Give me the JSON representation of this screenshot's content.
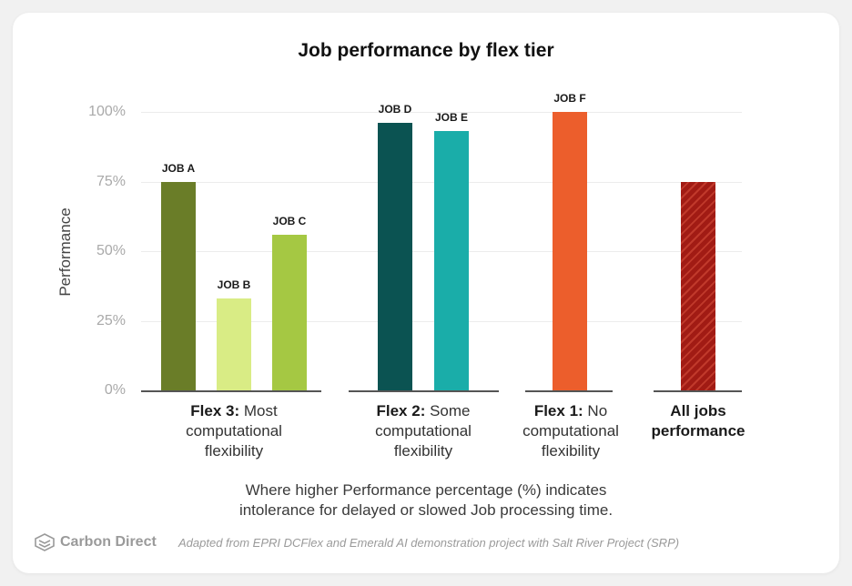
{
  "chart_data": {
    "type": "bar",
    "title": "Job performance by flex tier",
    "ylabel": "Performance",
    "ylim": [
      0,
      100
    ],
    "yticks": [
      "0%",
      "25%",
      "50%",
      "75%",
      "100%"
    ],
    "grid": true,
    "groups": [
      {
        "id": "flex3",
        "label_bold": "Flex 3:",
        "label_rest": " Most computational flexibility",
        "bars": [
          {
            "label": "JOB A",
            "value": 75,
            "color": "#6a7d28"
          },
          {
            "label": "JOB B",
            "value": 33,
            "color": "#d9ec85"
          },
          {
            "label": "JOB C",
            "value": 56,
            "color": "#a5c843"
          }
        ]
      },
      {
        "id": "flex2",
        "label_bold": "Flex 2:",
        "label_rest": " Some computational flexibility",
        "bars": [
          {
            "label": "JOB D",
            "value": 96,
            "color": "#0b5352"
          },
          {
            "label": "JOB E",
            "value": 93,
            "color": "#1aada9"
          }
        ]
      },
      {
        "id": "flex1",
        "label_bold": "Flex 1:",
        "label_rest": " No computational flexibility",
        "bars": [
          {
            "label": "JOB F",
            "value": 100,
            "color": "#ec5e2c"
          }
        ]
      },
      {
        "id": "all",
        "label_bold": "All jobs performance",
        "label_rest": "",
        "bars": [
          {
            "label": "",
            "value": 75,
            "color": "#a11b14",
            "pattern": "hatch"
          }
        ]
      }
    ]
  },
  "footer": {
    "note": "Where higher Performance percentage (%) indicates intolerance for delayed or slowed Job processing time.",
    "brand": "Carbon Direct",
    "brand_icon": "carbon-direct-logo",
    "source": "Adapted from EPRI DCFlex and Emerald AI demonstration project with Salt River Project (SRP)"
  }
}
